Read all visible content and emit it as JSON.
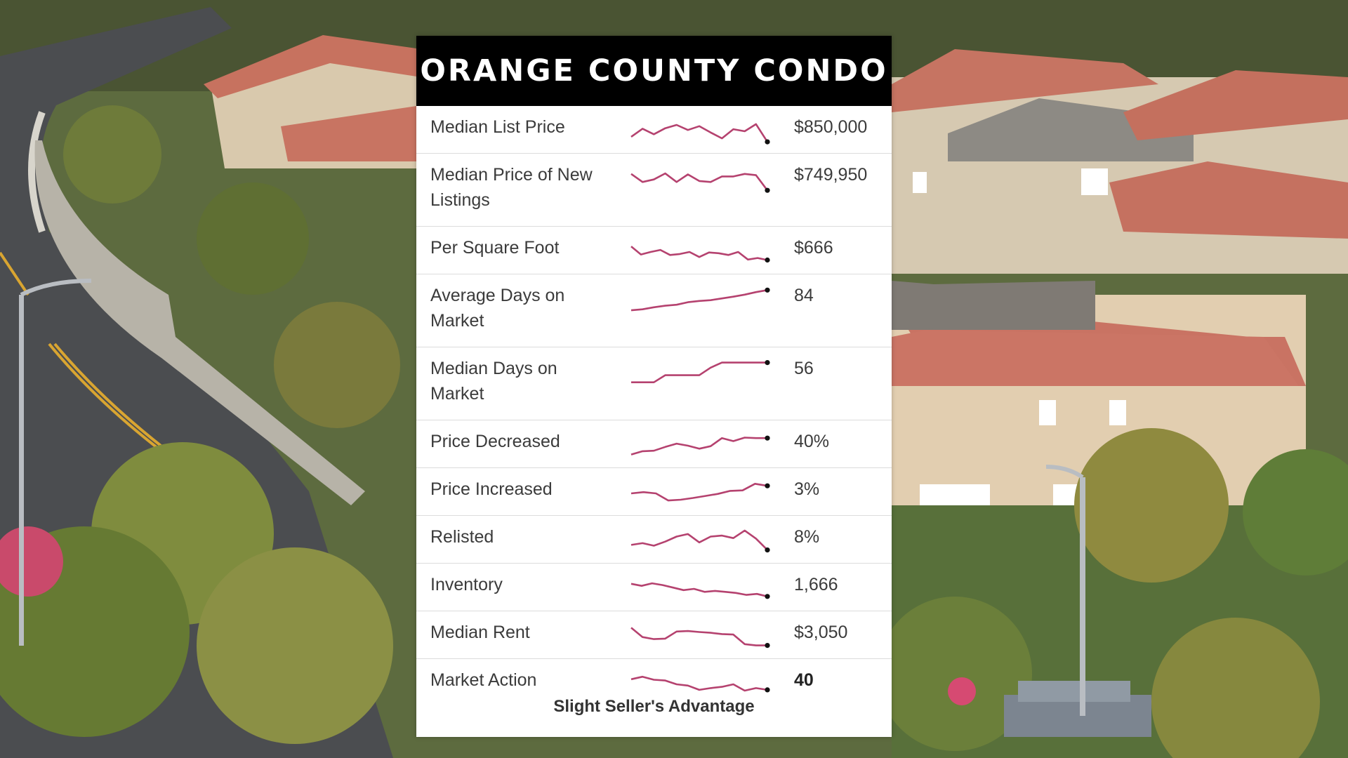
{
  "card": {
    "title": "ORANGE COUNTY CONDO",
    "line_color": "#b5426f",
    "rows": [
      {
        "label": "Median List Price",
        "value": "$850,000",
        "bold": false,
        "two_line": false,
        "trend": [
          0.72,
          0.4,
          0.62,
          0.38,
          0.25,
          0.45,
          0.3,
          0.55,
          0.78,
          0.42,
          0.5,
          0.22,
          0.92
        ]
      },
      {
        "label": "Median Price of New Listings",
        "value": "$749,950",
        "bold": false,
        "two_line": true,
        "trend": [
          0.3,
          0.62,
          0.52,
          0.28,
          0.62,
          0.32,
          0.58,
          0.62,
          0.4,
          0.4,
          0.3,
          0.35,
          0.95
        ]
      },
      {
        "label": "Per Square Foot",
        "value": "$666",
        "bold": false,
        "two_line": false,
        "trend": [
          0.28,
          0.6,
          0.5,
          0.42,
          0.62,
          0.58,
          0.5,
          0.7,
          0.52,
          0.55,
          0.62,
          0.5,
          0.8,
          0.74,
          0.82
        ]
      },
      {
        "label": "Average Days on Market",
        "value": "84",
        "bold": false,
        "two_line": true,
        "trend": [
          0.92,
          0.88,
          0.8,
          0.74,
          0.7,
          0.6,
          0.55,
          0.52,
          0.45,
          0.38,
          0.3,
          0.2,
          0.12
        ]
      },
      {
        "label": "Median Days on Market",
        "value": "56",
        "bold": false,
        "two_line": true,
        "trend": [
          0.88,
          0.88,
          0.88,
          0.6,
          0.6,
          0.6,
          0.6,
          0.3,
          0.1,
          0.1,
          0.1,
          0.1,
          0.1
        ]
      },
      {
        "label": "Price Decreased",
        "value": "40%",
        "bold": false,
        "two_line": false,
        "trend": [
          0.85,
          0.72,
          0.7,
          0.55,
          0.42,
          0.5,
          0.62,
          0.52,
          0.2,
          0.32,
          0.18,
          0.2,
          0.2
        ]
      },
      {
        "label": "Price Increased",
        "value": "3%",
        "bold": false,
        "two_line": false,
        "trend": [
          0.5,
          0.45,
          0.5,
          0.78,
          0.75,
          0.68,
          0.6,
          0.52,
          0.4,
          0.38,
          0.12,
          0.2
        ]
      },
      {
        "label": "Relisted",
        "value": "8%",
        "bold": false,
        "two_line": false,
        "trend": [
          0.65,
          0.58,
          0.68,
          0.52,
          0.32,
          0.22,
          0.55,
          0.32,
          0.28,
          0.38,
          0.08,
          0.4,
          0.85
        ]
      },
      {
        "label": "Inventory",
        "value": "1,666",
        "bold": false,
        "two_line": false,
        "trend": [
          0.3,
          0.38,
          0.28,
          0.35,
          0.45,
          0.55,
          0.5,
          0.62,
          0.58,
          0.62,
          0.66,
          0.74,
          0.7,
          0.8
        ]
      },
      {
        "label": "Median Rent",
        "value": "$3,050",
        "bold": false,
        "two_line": false,
        "trend": [
          0.15,
          0.52,
          0.6,
          0.58,
          0.3,
          0.28,
          0.32,
          0.35,
          0.4,
          0.42,
          0.8,
          0.85,
          0.85
        ]
      },
      {
        "label": "Market Action",
        "value": "40",
        "bold": true,
        "two_line": false,
        "trend": [
          0.3,
          0.2,
          0.32,
          0.35,
          0.5,
          0.55,
          0.72,
          0.65,
          0.6,
          0.5,
          0.75,
          0.65,
          0.72
        ]
      }
    ],
    "footer": "Slight Seller's Advantage"
  }
}
